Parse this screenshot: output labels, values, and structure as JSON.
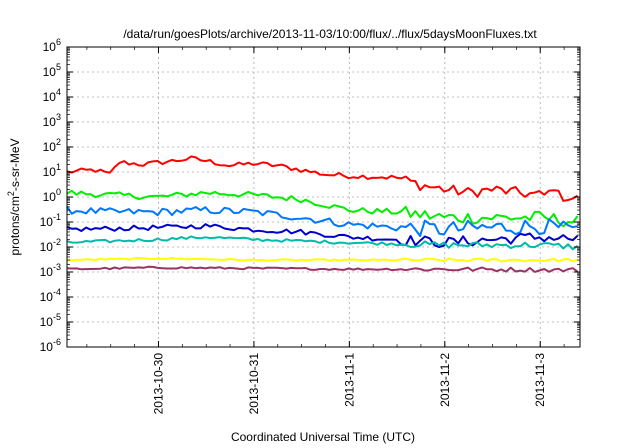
{
  "chart_data": {
    "type": "line",
    "title": "/data/run/goesPlots/archive/2013-11-03/10:00/flux/../flux/5daysMoonFluxes.txt",
    "xlabel": "Coordinated Universal Time (UTC)",
    "ylabel": {
      "pre": "protons/cm",
      "sup": "2",
      "post": "-s-sr-MeV"
    },
    "x_axis": {
      "type": "time",
      "start": "2013-10-29T01:00",
      "end": "2013-11-03T10:00"
    },
    "y_axis": {
      "scale": "log",
      "range": [
        1e-06,
        1000000.0
      ]
    },
    "x_ticks": [
      {
        "label": "2013-10-30",
        "value": "2013-10-30T00:00"
      },
      {
        "label": "2013-10-31",
        "value": "2013-10-31T00:00"
      },
      {
        "label": "2013-11-1",
        "value": "2013-11-01T00:00"
      },
      {
        "label": "2013-11-2",
        "value": "2013-11-02T00:00"
      },
      {
        "label": "2013-11-3",
        "value": "2013-11-03T00:00"
      }
    ],
    "y_ticks": [
      {
        "base": "10",
        "exp": "-6",
        "value": 1e-06
      },
      {
        "base": "10",
        "exp": "-5",
        "value": 1e-05
      },
      {
        "base": "10",
        "exp": "-4",
        "value": 0.0001
      },
      {
        "base": "10",
        "exp": "-3",
        "value": 0.001
      },
      {
        "base": "10",
        "exp": "-2",
        "value": 0.01
      },
      {
        "base": "10",
        "exp": "-1",
        "value": 0.1
      },
      {
        "base": "10",
        "exp": "0",
        "value": 1
      },
      {
        "base": "10",
        "exp": "1",
        "value": 10
      },
      {
        "base": "10",
        "exp": "2",
        "value": 100
      },
      {
        "base": "10",
        "exp": "3",
        "value": 1000
      },
      {
        "base": "10",
        "exp": "4",
        "value": 10000
      },
      {
        "base": "10",
        "exp": "5",
        "value": 100000
      },
      {
        "base": "10",
        "exp": "6",
        "value": 1000000
      }
    ],
    "grid": true,
    "series": [
      {
        "color": "#ff0000",
        "noise": 0.1,
        "points": [
          [
            "2013-10-29T01:00",
            10
          ],
          [
            "2013-10-29T08:00",
            12
          ],
          [
            "2013-10-29T12:00",
            8
          ],
          [
            "2013-10-29T14:00",
            25
          ],
          [
            "2013-10-29T20:00",
            20
          ],
          [
            "2013-10-30T04:00",
            28
          ],
          [
            "2013-10-30T08:00",
            35
          ],
          [
            "2013-10-30T12:00",
            28
          ],
          [
            "2013-10-30T18:00",
            18
          ],
          [
            "2013-10-31T00:00",
            22
          ],
          [
            "2013-10-31T06:00",
            18
          ],
          [
            "2013-10-31T12:00",
            12
          ],
          [
            "2013-10-31T18:00",
            8
          ],
          [
            "2013-11-01T00:00",
            7
          ],
          [
            "2013-11-01T12:00",
            6
          ],
          [
            "2013-11-01T18:00",
            3
          ],
          [
            "2013-11-02T00:00",
            2
          ],
          [
            "2013-11-02T06:00",
            1.5
          ],
          [
            "2013-11-02T12:00",
            2
          ],
          [
            "2013-11-02T18:00",
            1.5
          ],
          [
            "2013-11-03T00:00",
            1.2
          ],
          [
            "2013-11-03T02:00",
            1.1
          ],
          [
            "2013-11-03T03:00",
            5
          ],
          [
            "2013-11-03T04:00",
            1.2
          ],
          [
            "2013-11-03T10:00",
            0.8
          ]
        ]
      },
      {
        "color": "#00ee00",
        "noise": 0.12,
        "points": [
          [
            "2013-10-29T01:00",
            1.5
          ],
          [
            "2013-10-29T12:00",
            1.2
          ],
          [
            "2013-10-30T00:00",
            1.0
          ],
          [
            "2013-10-30T12:00",
            1.5
          ],
          [
            "2013-10-31T00:00",
            1.2
          ],
          [
            "2013-10-31T12:00",
            0.8
          ],
          [
            "2013-11-01T00:00",
            0.3
          ],
          [
            "2013-11-01T12:00",
            0.25
          ],
          [
            "2013-11-02T00:00",
            0.15
          ],
          [
            "2013-11-02T12:00",
            0.15
          ],
          [
            "2013-11-03T00:00",
            0.15
          ],
          [
            "2013-11-03T10:00",
            0.1
          ]
        ]
      },
      {
        "color": "#0077ff",
        "noise": 0.15,
        "points": [
          [
            "2013-10-29T01:00",
            0.3
          ],
          [
            "2013-10-29T12:00",
            0.25
          ],
          [
            "2013-10-30T00:00",
            0.25
          ],
          [
            "2013-10-30T12:00",
            0.3
          ],
          [
            "2013-10-31T00:00",
            0.25
          ],
          [
            "2013-10-31T12:00",
            0.15
          ],
          [
            "2013-11-01T00:00",
            0.08
          ],
          [
            "2013-11-01T12:00",
            0.06
          ],
          [
            "2013-11-02T00:00",
            0.05
          ],
          [
            "2013-11-02T12:00",
            0.06
          ],
          [
            "2013-11-03T00:00",
            0.07
          ],
          [
            "2013-11-03T10:00",
            0.04
          ]
        ]
      },
      {
        "color": "#0000cc",
        "noise": 0.1,
        "points": [
          [
            "2013-10-29T01:00",
            0.05
          ],
          [
            "2013-10-30T00:00",
            0.06
          ],
          [
            "2013-10-30T12:00",
            0.07
          ],
          [
            "2013-10-31T00:00",
            0.05
          ],
          [
            "2013-10-31T12:00",
            0.04
          ],
          [
            "2013-11-01T00:00",
            0.025
          ],
          [
            "2013-11-01T12:00",
            0.02
          ],
          [
            "2013-11-02T00:00",
            0.015
          ],
          [
            "2013-11-02T12:00",
            0.02
          ],
          [
            "2013-11-03T00:00",
            0.025
          ],
          [
            "2013-11-03T10:00",
            0.02
          ]
        ]
      },
      {
        "color": "#00bbaa",
        "noise": 0.06,
        "points": [
          [
            "2013-10-29T01:00",
            0.015
          ],
          [
            "2013-10-30T00:00",
            0.02
          ],
          [
            "2013-10-30T12:00",
            0.025
          ],
          [
            "2013-10-31T00:00",
            0.02
          ],
          [
            "2013-11-01T00:00",
            0.015
          ],
          [
            "2013-11-02T00:00",
            0.012
          ],
          [
            "2013-11-03T00:00",
            0.012
          ],
          [
            "2013-11-03T10:00",
            0.01
          ]
        ]
      },
      {
        "color": "#ffff00",
        "noise": 0.03,
        "points": [
          [
            "2013-10-29T01:00",
            0.003
          ],
          [
            "2013-10-30T00:00",
            0.0035
          ],
          [
            "2013-10-31T00:00",
            0.003
          ],
          [
            "2013-11-01T00:00",
            0.003
          ],
          [
            "2013-11-02T00:00",
            0.003
          ],
          [
            "2013-11-03T10:00",
            0.003
          ]
        ]
      },
      {
        "color": "#993366",
        "noise": 0.04,
        "points": [
          [
            "2013-10-29T01:00",
            0.0013
          ],
          [
            "2013-10-30T00:00",
            0.0015
          ],
          [
            "2013-10-31T00:00",
            0.0014
          ],
          [
            "2013-11-01T00:00",
            0.0013
          ],
          [
            "2013-11-02T00:00",
            0.0013
          ],
          [
            "2013-11-03T10:00",
            0.0012
          ]
        ]
      }
    ]
  }
}
